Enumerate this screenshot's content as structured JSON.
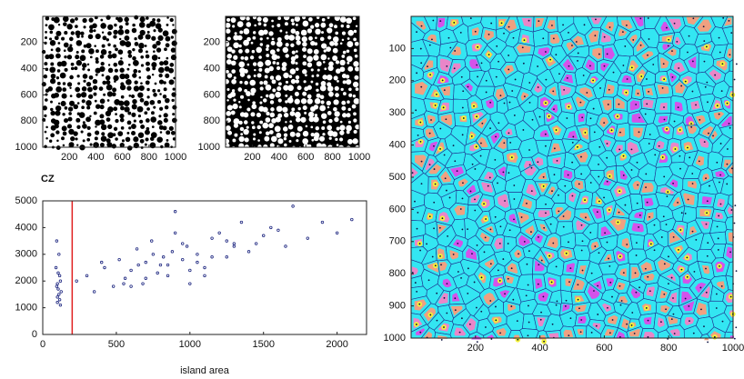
{
  "chart_data": [
    {
      "type": "image",
      "background": "#ffffff",
      "color": "#000000",
      "xlim": [
        0,
        1000
      ],
      "ylim": [
        1000,
        0
      ],
      "xticks": [
        200,
        400,
        600,
        800,
        1000
      ],
      "yticks": [
        200,
        400,
        600,
        800,
        1000
      ]
    },
    {
      "type": "image",
      "background": "#000000",
      "color": "#ffffff",
      "xlim": [
        0,
        1000
      ],
      "ylim": [
        1000,
        0
      ],
      "xticks": [
        200,
        400,
        600,
        800,
        1000
      ],
      "yticks": [
        200,
        400,
        600,
        800,
        1000
      ]
    },
    {
      "type": "scatter",
      "title": "CZ",
      "xlabel": "island area",
      "color": "#1a237e",
      "threshold_x": 200,
      "threshold_color": "#e02020",
      "xlim": [
        0,
        2200
      ],
      "ylim": [
        0,
        5000
      ],
      "xticks": [
        0,
        500,
        1000,
        1500,
        2000
      ],
      "yticks": [
        0,
        1000,
        2000,
        3000,
        4000,
        5000
      ],
      "x": [
        100,
        110,
        95,
        120,
        105,
        115,
        100,
        90,
        110,
        125,
        100,
        105,
        115,
        95,
        120,
        230,
        300,
        350,
        420,
        480,
        520,
        560,
        600,
        640,
        680,
        700,
        740,
        780,
        820,
        850,
        880,
        900,
        950,
        980,
        1000,
        1050,
        1100,
        1150,
        1200,
        1250,
        1300,
        1350,
        1400,
        1450,
        1500,
        1550,
        1600,
        1650,
        1700,
        1800,
        1900,
        2000,
        2100,
        400,
        550,
        650,
        750,
        850,
        950,
        1050,
        1150,
        1250,
        600,
        700,
        800,
        900,
        1000,
        1100,
        1300
      ],
      "y": [
        1200,
        1500,
        1800,
        2000,
        1700,
        2200,
        1400,
        2500,
        3000,
        1600,
        1900,
        2300,
        1300,
        3500,
        1100,
        2000,
        2200,
        1600,
        2500,
        1800,
        2800,
        2100,
        2400,
        3200,
        1900,
        2700,
        3500,
        2300,
        2900,
        2600,
        3100,
        4600,
        2800,
        3300,
        2400,
        3000,
        2500,
        3600,
        3800,
        2900,
        3300,
        4200,
        3100,
        3400,
        3700,
        4000,
        3900,
        3300,
        4800,
        3600,
        4200,
        3800,
        4300,
        2700,
        1900,
        2600,
        3000,
        2200,
        3400,
        2700,
        2900,
        3500,
        1800,
        2100,
        2600,
        3800,
        1900,
        2200,
        3400
      ]
    },
    {
      "type": "voronoi",
      "background": "#33e6f2",
      "color": "#1f2f8f",
      "xlim": [
        0,
        1000
      ],
      "ylim": [
        1000,
        0
      ],
      "xticks": [
        200,
        400,
        600,
        800,
        1000
      ],
      "yticks": [
        100,
        200,
        300,
        400,
        500,
        600,
        700,
        800,
        900,
        1000
      ]
    }
  ]
}
